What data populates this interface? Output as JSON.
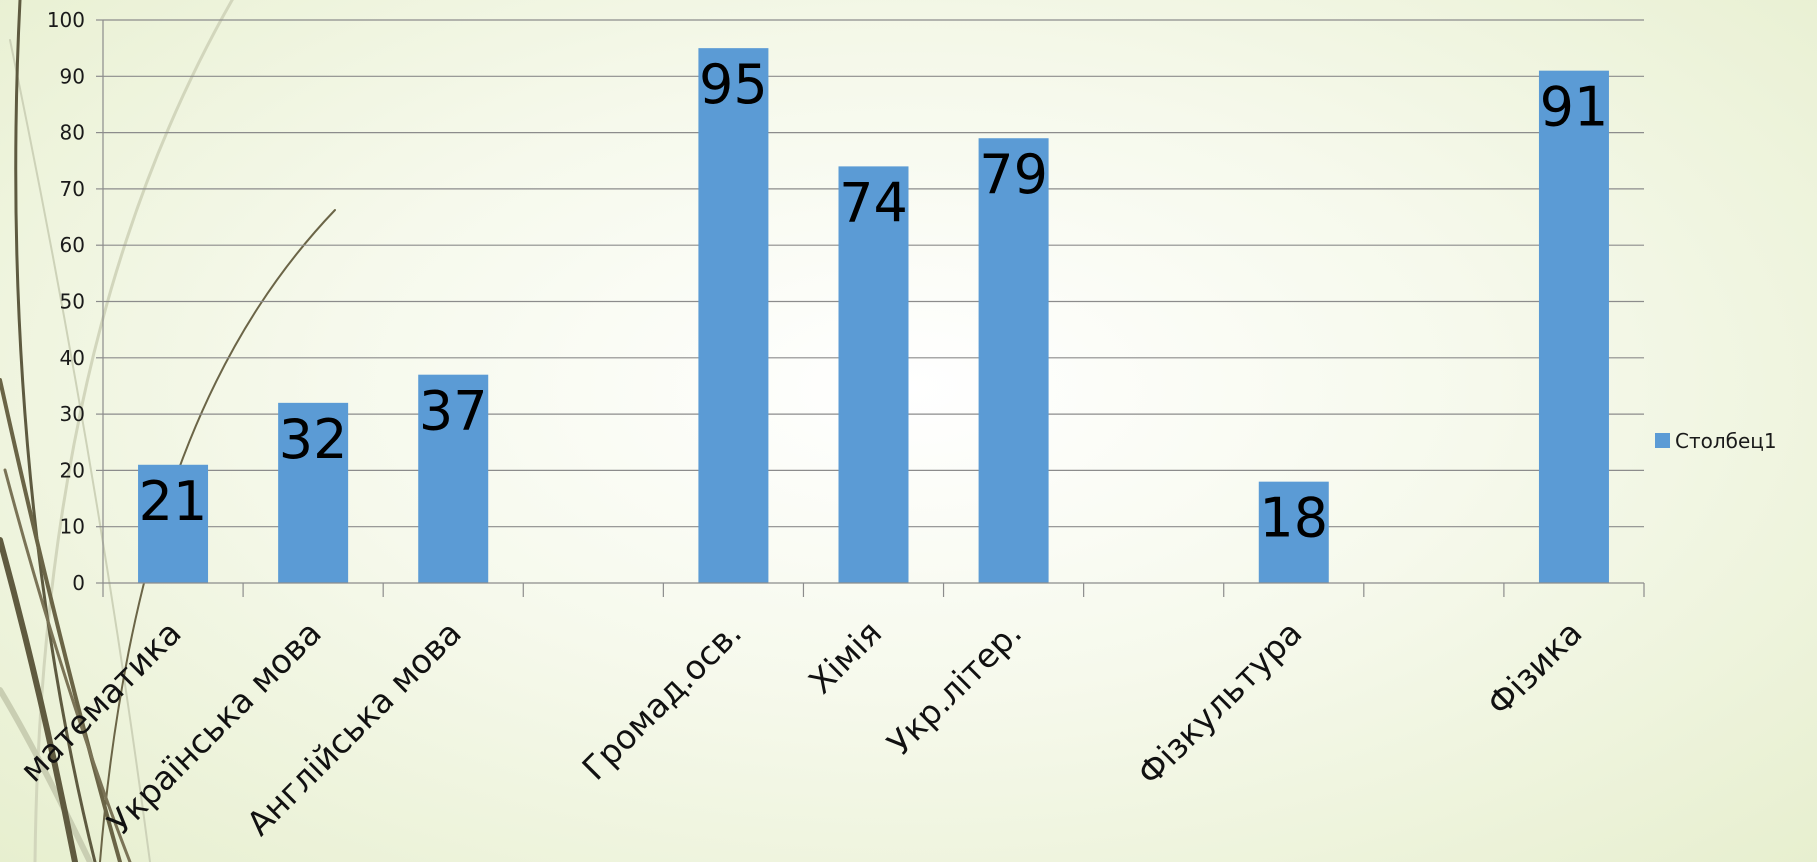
{
  "chart_data": {
    "type": "bar",
    "categories": [
      "математика",
      "Українська мова",
      "Англійська мова",
      "",
      "Громад.осв.",
      "Хімія",
      "Укр.літер.",
      "",
      "Фізкультура",
      "",
      "Фізика"
    ],
    "series": [
      {
        "name": "Столбец1",
        "values": [
          21,
          32,
          37,
          null,
          95,
          74,
          79,
          null,
          18,
          null,
          91
        ],
        "color": "#5b9bd5"
      }
    ],
    "ylim": [
      0,
      100
    ],
    "yticks": [
      0,
      10,
      20,
      30,
      40,
      50,
      60,
      70,
      80,
      90,
      100
    ],
    "grid": true,
    "legend_position": "right",
    "data_labels": true,
    "xlabel": "",
    "ylabel": "",
    "title": ""
  }
}
